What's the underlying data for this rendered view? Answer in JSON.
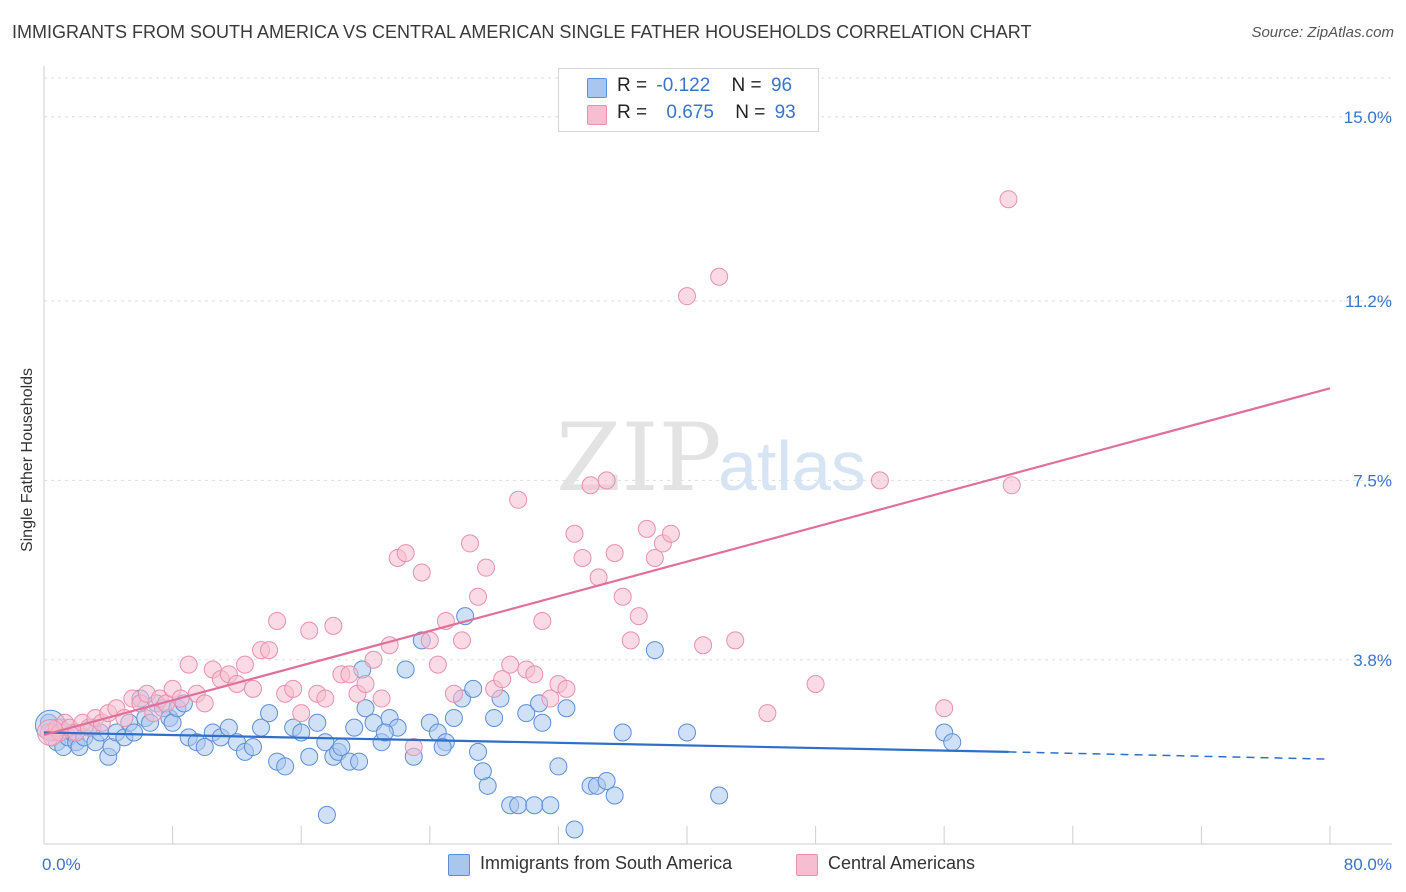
{
  "title": "IMMIGRANTS FROM SOUTH AMERICA VS CENTRAL AMERICAN SINGLE FATHER HOUSEHOLDS CORRELATION CHART",
  "source": "Source: ZipAtlas.com",
  "watermark": {
    "zip": "ZIP",
    "atlas": "atlas"
  },
  "legend": {
    "series1": {
      "r_label": "R =",
      "r_value": "-0.122",
      "n_label": "N =",
      "n_value": "96"
    },
    "series2": {
      "r_label": "R =",
      "r_value": "0.675",
      "n_label": "N =",
      "n_value": "93"
    }
  },
  "bottom_legend": {
    "series1": "Immigrants from South America",
    "series2": "Central Americans"
  },
  "colors": {
    "blue_fill": "#a9c6ee",
    "blue_stroke": "#5b8fd6",
    "blue_line": "#2f6fc9",
    "pink_fill": "#f6bed0",
    "pink_stroke": "#e890ad",
    "pink_line": "#e0709a",
    "tick_label": "#3a74c9",
    "grid": "#dddddd"
  },
  "chart_data": {
    "type": "scatter",
    "title": "IMMIGRANTS FROM SOUTH AMERICA VS CENTRAL AMERICAN SINGLE FATHER HOUSEHOLDS CORRELATION CHART",
    "xlabel": "",
    "ylabel": "Single Father Households",
    "xlim": [
      0,
      80
    ],
    "ylim": [
      0,
      15.8
    ],
    "x_tick_labels": [
      "0.0%",
      "80.0%"
    ],
    "y_ticks": [
      3.8,
      7.5,
      11.2,
      15.0
    ],
    "y_tick_labels": [
      "3.8%",
      "7.5%",
      "11.2%",
      "15.0%"
    ],
    "grid": true,
    "legend_position": "top-center",
    "series": [
      {
        "name": "Immigrants from South America",
        "r": -0.122,
        "n": 96,
        "trend": {
          "x0": 0,
          "y0": 2.3,
          "x1": 60,
          "y1": 1.9,
          "dash_to_x": 80,
          "dash_to_y": 1.75
        },
        "points": [
          [
            0.3,
            2.5
          ],
          [
            0.5,
            2.3
          ],
          [
            0.8,
            2.1
          ],
          [
            1.0,
            2.4
          ],
          [
            1.2,
            2.0
          ],
          [
            1.5,
            2.2
          ],
          [
            1.8,
            2.3
          ],
          [
            2.0,
            2.1
          ],
          [
            2.2,
            2.0
          ],
          [
            2.5,
            2.2
          ],
          [
            3.0,
            2.4
          ],
          [
            3.2,
            2.1
          ],
          [
            3.5,
            2.3
          ],
          [
            4.0,
            1.8
          ],
          [
            4.2,
            2.0
          ],
          [
            4.5,
            2.3
          ],
          [
            5.0,
            2.2
          ],
          [
            5.3,
            2.5
          ],
          [
            5.6,
            2.3
          ],
          [
            6.0,
            3.0
          ],
          [
            6.3,
            2.6
          ],
          [
            6.6,
            2.5
          ],
          [
            7.0,
            2.9
          ],
          [
            7.4,
            2.8
          ],
          [
            7.8,
            2.6
          ],
          [
            8.0,
            2.5
          ],
          [
            8.3,
            2.8
          ],
          [
            8.7,
            2.9
          ],
          [
            9.0,
            2.2
          ],
          [
            9.5,
            2.1
          ],
          [
            10.0,
            2.0
          ],
          [
            10.5,
            2.3
          ],
          [
            11.0,
            2.2
          ],
          [
            11.5,
            2.4
          ],
          [
            12.0,
            2.1
          ],
          [
            12.5,
            1.9
          ],
          [
            13.0,
            2.0
          ],
          [
            13.5,
            2.4
          ],
          [
            14.0,
            2.7
          ],
          [
            14.5,
            1.7
          ],
          [
            15.0,
            1.6
          ],
          [
            15.5,
            2.4
          ],
          [
            16.0,
            2.3
          ],
          [
            16.5,
            1.8
          ],
          [
            17.0,
            2.5
          ],
          [
            17.5,
            2.1
          ],
          [
            18.0,
            1.8
          ],
          [
            18.3,
            1.9
          ],
          [
            18.5,
            2.0
          ],
          [
            19.0,
            1.7
          ],
          [
            19.3,
            2.4
          ],
          [
            19.8,
            3.6
          ],
          [
            20.0,
            2.8
          ],
          [
            20.5,
            2.5
          ],
          [
            21.0,
            2.1
          ],
          [
            21.5,
            2.6
          ],
          [
            22.0,
            2.4
          ],
          [
            22.5,
            3.6
          ],
          [
            23.0,
            1.8
          ],
          [
            23.5,
            4.2
          ],
          [
            24.0,
            2.5
          ],
          [
            24.5,
            2.3
          ],
          [
            25.0,
            2.1
          ],
          [
            25.5,
            2.6
          ],
          [
            26.0,
            3.0
          ],
          [
            26.2,
            4.7
          ],
          [
            26.7,
            3.2
          ],
          [
            27.0,
            1.9
          ],
          [
            27.6,
            1.2
          ],
          [
            28.0,
            2.6
          ],
          [
            28.4,
            3.0
          ],
          [
            29.0,
            0.8
          ],
          [
            29.5,
            0.8
          ],
          [
            30.0,
            2.7
          ],
          [
            30.5,
            0.8
          ],
          [
            31.0,
            2.5
          ],
          [
            31.5,
            0.8
          ],
          [
            32.0,
            1.6
          ],
          [
            32.5,
            2.8
          ],
          [
            33.0,
            0.3
          ],
          [
            34.0,
            1.2
          ],
          [
            34.4,
            1.2
          ],
          [
            35.0,
            1.3
          ],
          [
            35.5,
            1.0
          ],
          [
            36.0,
            2.3
          ],
          [
            38.0,
            4.0
          ],
          [
            40.0,
            2.3
          ],
          [
            42.0,
            1.0
          ],
          [
            17.6,
            0.6
          ],
          [
            19.6,
            1.7
          ],
          [
            21.2,
            2.3
          ],
          [
            24.8,
            2.0
          ],
          [
            27.3,
            1.5
          ],
          [
            30.8,
            2.9
          ],
          [
            56.0,
            2.3
          ],
          [
            56.5,
            2.1
          ]
        ]
      },
      {
        "name": "Central Americans",
        "r": 0.675,
        "n": 93,
        "trend": {
          "x0": 0,
          "y0": 2.25,
          "x1": 80,
          "y1": 9.4
        },
        "points": [
          [
            0.3,
            2.3
          ],
          [
            0.5,
            2.2
          ],
          [
            0.8,
            2.4
          ],
          [
            1.0,
            2.3
          ],
          [
            1.3,
            2.5
          ],
          [
            1.6,
            2.4
          ],
          [
            2.0,
            2.3
          ],
          [
            2.4,
            2.5
          ],
          [
            2.8,
            2.4
          ],
          [
            3.2,
            2.6
          ],
          [
            3.6,
            2.5
          ],
          [
            4.0,
            2.7
          ],
          [
            4.5,
            2.8
          ],
          [
            5.0,
            2.6
          ],
          [
            5.5,
            3.0
          ],
          [
            6.0,
            2.9
          ],
          [
            6.4,
            3.1
          ],
          [
            6.8,
            2.7
          ],
          [
            7.2,
            3.0
          ],
          [
            7.6,
            2.9
          ],
          [
            8.0,
            3.2
          ],
          [
            8.5,
            3.0
          ],
          [
            9.0,
            3.7
          ],
          [
            9.5,
            3.1
          ],
          [
            10.0,
            2.9
          ],
          [
            10.5,
            3.6
          ],
          [
            11.0,
            3.4
          ],
          [
            11.5,
            3.5
          ],
          [
            12.0,
            3.3
          ],
          [
            12.5,
            3.7
          ],
          [
            13.0,
            3.2
          ],
          [
            13.5,
            4.0
          ],
          [
            14.0,
            4.0
          ],
          [
            14.5,
            4.6
          ],
          [
            15.0,
            3.1
          ],
          [
            15.5,
            3.2
          ],
          [
            16.0,
            2.7
          ],
          [
            16.5,
            4.4
          ],
          [
            17.0,
            3.1
          ],
          [
            17.5,
            3.0
          ],
          [
            18.0,
            4.5
          ],
          [
            18.5,
            3.5
          ],
          [
            19.0,
            3.5
          ],
          [
            19.5,
            3.1
          ],
          [
            20.0,
            3.3
          ],
          [
            20.5,
            3.8
          ],
          [
            21.0,
            3.0
          ],
          [
            21.5,
            4.1
          ],
          [
            22.0,
            5.9
          ],
          [
            22.5,
            6.0
          ],
          [
            23.0,
            2.0
          ],
          [
            23.5,
            5.6
          ],
          [
            24.0,
            4.2
          ],
          [
            24.5,
            3.7
          ],
          [
            25.0,
            4.6
          ],
          [
            25.5,
            3.1
          ],
          [
            26.0,
            4.2
          ],
          [
            26.5,
            6.2
          ],
          [
            27.0,
            5.1
          ],
          [
            27.5,
            5.7
          ],
          [
            28.0,
            3.2
          ],
          [
            28.5,
            3.4
          ],
          [
            29.0,
            3.7
          ],
          [
            29.5,
            7.1
          ],
          [
            30.0,
            3.6
          ],
          [
            30.5,
            3.5
          ],
          [
            31.0,
            4.6
          ],
          [
            31.5,
            3.0
          ],
          [
            32.0,
            3.3
          ],
          [
            32.5,
            3.2
          ],
          [
            33.0,
            6.4
          ],
          [
            33.5,
            5.9
          ],
          [
            34.0,
            7.4
          ],
          [
            34.5,
            5.5
          ],
          [
            35.0,
            7.5
          ],
          [
            35.5,
            6.0
          ],
          [
            36.0,
            5.1
          ],
          [
            36.5,
            4.2
          ],
          [
            37.0,
            4.7
          ],
          [
            37.5,
            6.5
          ],
          [
            38.0,
            5.9
          ],
          [
            38.5,
            6.2
          ],
          [
            39.0,
            6.4
          ],
          [
            40.0,
            11.3
          ],
          [
            41.0,
            4.1
          ],
          [
            42.0,
            11.7
          ],
          [
            43.0,
            4.2
          ],
          [
            45.0,
            2.7
          ],
          [
            48.0,
            3.3
          ],
          [
            52.0,
            7.5
          ],
          [
            56.0,
            2.8
          ],
          [
            60.0,
            13.3
          ],
          [
            60.2,
            7.4
          ]
        ]
      }
    ]
  }
}
